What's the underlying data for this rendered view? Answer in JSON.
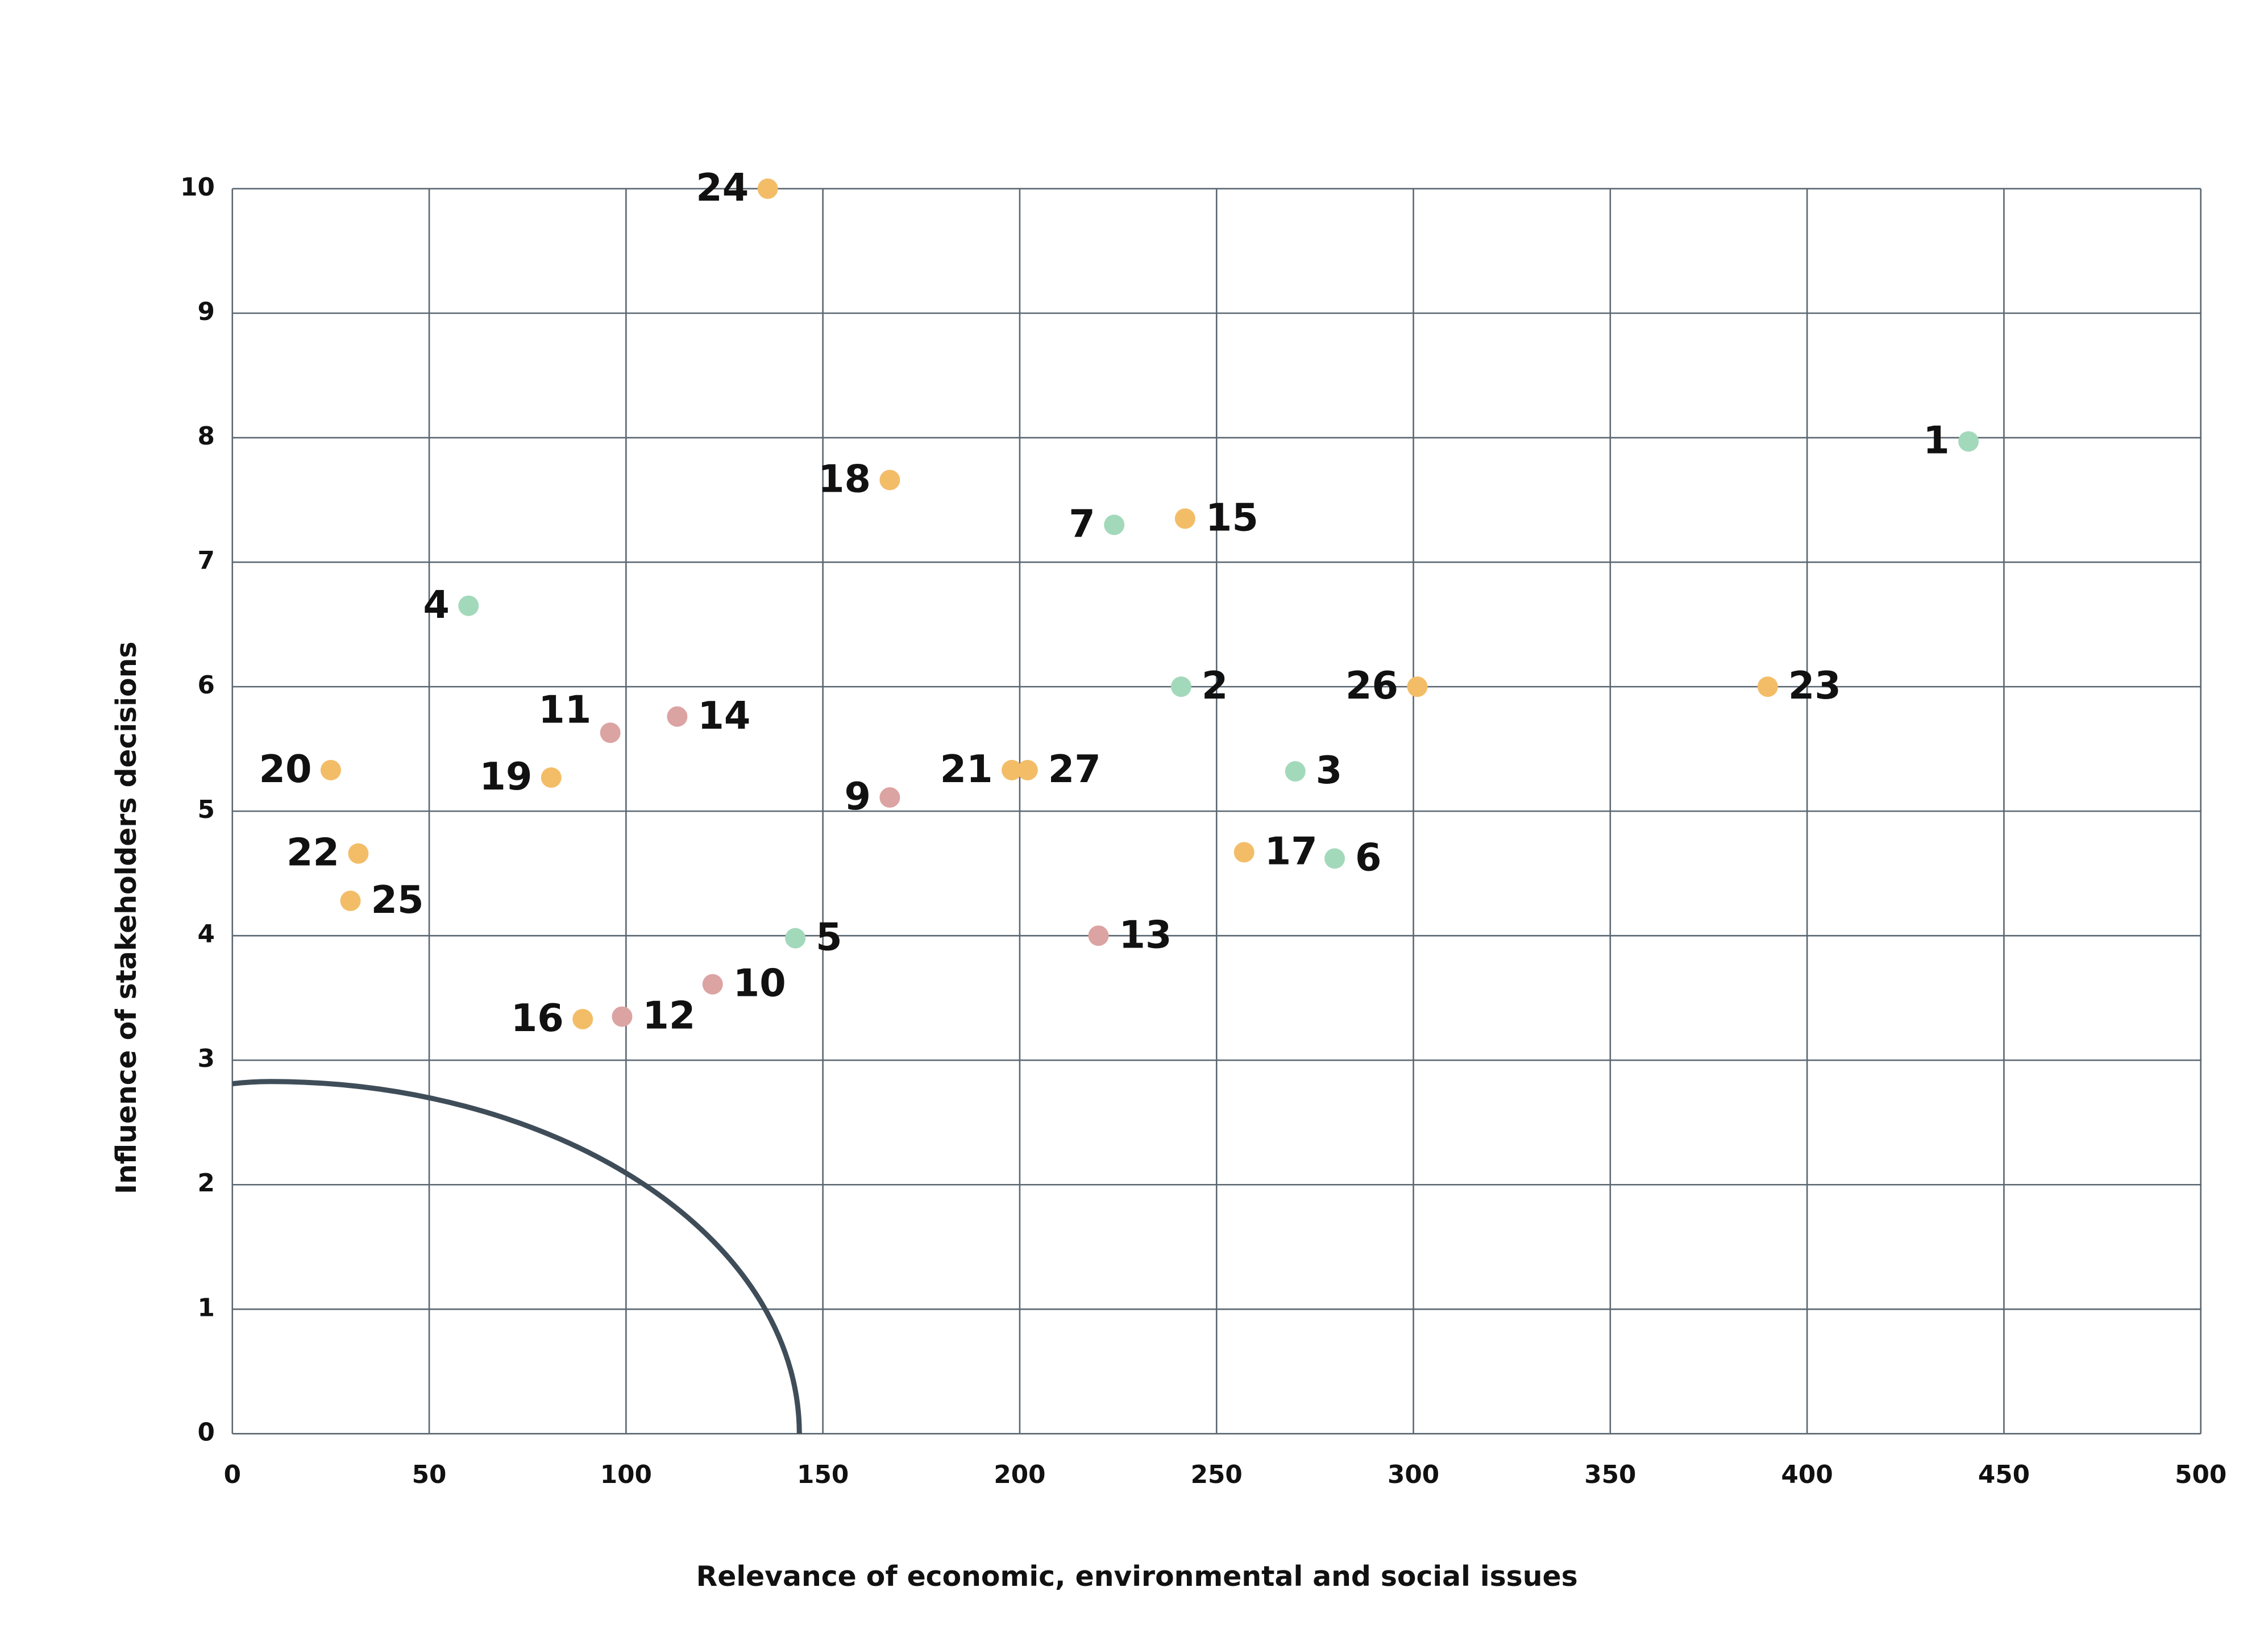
{
  "chart_data": {
    "type": "scatter",
    "xlabel": "Relevance of economic, environmental and social issues",
    "ylabel": "Influence of stakeholders decisions",
    "labels": [
      "24",
      "1",
      "18",
      "7",
      "15",
      "4",
      "2",
      "26",
      "23",
      "11",
      "14",
      "20",
      "19",
      "21",
      "27",
      "3",
      "9",
      "22",
      "25",
      "17",
      "6",
      "5",
      "13",
      "10",
      "16",
      "12"
    ],
    "x": [
      136,
      441,
      167,
      224,
      242,
      60,
      241,
      301,
      390,
      96,
      113,
      25,
      81,
      198,
      202,
      270,
      167,
      32,
      30,
      257,
      280,
      143,
      220,
      122,
      89,
      99
    ],
    "y": [
      10,
      7.97,
      7.66,
      7.3,
      7.35,
      6.65,
      6.0,
      6.0,
      6.0,
      5.63,
      5.76,
      5.33,
      5.27,
      5.33,
      5.33,
      5.32,
      5.11,
      4.66,
      4.28,
      4.67,
      4.62,
      3.98,
      4.0,
      3.61,
      3.33,
      3.35
    ],
    "colors": [
      "#f3bd68",
      "#a3d9bb",
      "#f3bd68",
      "#a3d9bb",
      "#f3bd68",
      "#a3d9bb",
      "#a3d9bb",
      "#f3bd68",
      "#f3bd68",
      "#dca3a3",
      "#dca3a3",
      "#f3bd68",
      "#f3bd68",
      "#f3bd68",
      "#f3bd68",
      "#a3d9bb",
      "#dca3a3",
      "#f3bd68",
      "#f3bd68",
      "#f3bd68",
      "#a3d9bb",
      "#a3d9bb",
      "#dca3a3",
      "#dca3a3",
      "#f3bd68",
      "#dca3a3"
    ],
    "xlim": [
      0,
      500
    ],
    "xticks": [
      0,
      50,
      100,
      150,
      200,
      250,
      300,
      350,
      400,
      450,
      500
    ],
    "ylim": [
      0,
      10
    ],
    "yticks": [
      0,
      1,
      2,
      3,
      4,
      5,
      6,
      7,
      8,
      9,
      10
    ],
    "grid": true
  }
}
